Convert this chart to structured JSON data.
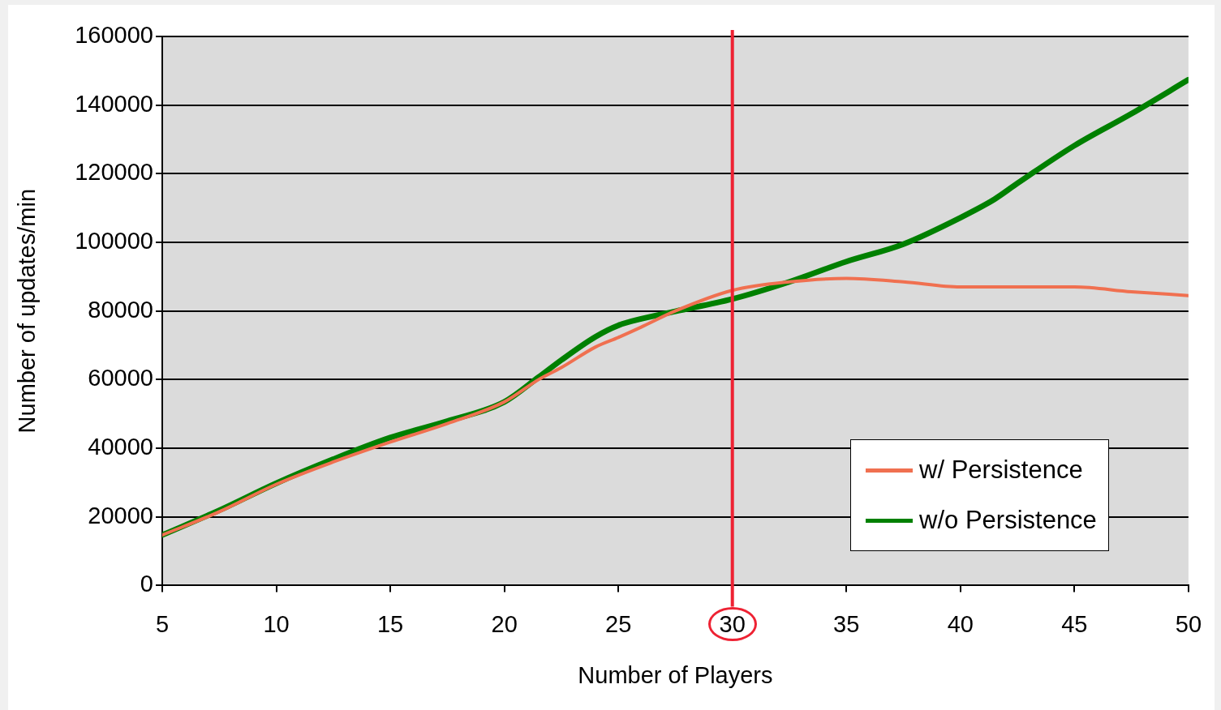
{
  "chart_data": {
    "type": "line",
    "xlabel": "Number of Players",
    "ylabel": "Number of updates/min",
    "xlim": [
      5,
      50
    ],
    "xticks": [
      5,
      10,
      15,
      20,
      25,
      30,
      35,
      40,
      45,
      50
    ],
    "ylim": [
      0,
      160000
    ],
    "yticks": [
      0,
      20000,
      40000,
      60000,
      80000,
      100000,
      120000,
      140000,
      160000
    ],
    "grid": "y",
    "legend": "bottom right",
    "marker": "none",
    "line_style": "solid",
    "ref_lines": [
      {
        "axis": "x",
        "value": 30,
        "color": "#ee2233"
      }
    ],
    "series": [
      {
        "name": "w/ Persistence",
        "color": "#f07050",
        "x": [
          5,
          7.5,
          10,
          12.5,
          15,
          17.5,
          20,
          21.5,
          22.5,
          24,
          25,
          26,
          27.5,
          30,
          32.5,
          35,
          37.5,
          40,
          42.5,
          45,
          47.5,
          50
        ],
        "values": [
          14700,
          21500,
          29500,
          36000,
          41800,
          47200,
          53500,
          60000,
          63500,
          69500,
          72300,
          75300,
          80000,
          86000,
          88500,
          89500,
          88500,
          87000,
          87000,
          87000,
          85600,
          84500
        ]
      },
      {
        "name": "w/o Persistence",
        "color": "#008000",
        "x": [
          5,
          7.5,
          10,
          12.5,
          15,
          17.5,
          20,
          21.5,
          22.5,
          24,
          25,
          26,
          27.5,
          30,
          32.5,
          35,
          37.5,
          40,
          41.5,
          42.5,
          45,
          47.5,
          50
        ],
        "values": [
          14700,
          21900,
          29800,
          36800,
          43100,
          47900,
          53500,
          60700,
          65700,
          72500,
          75800,
          77700,
          79900,
          83500,
          88500,
          94400,
          99500,
          107200,
          112600,
          117200,
          128200,
          137500,
          147400
        ]
      }
    ]
  }
}
